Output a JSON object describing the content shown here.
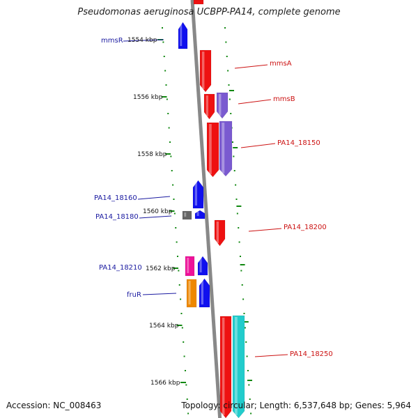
{
  "title": "Pseudomonas aeruginosa UCBPP-PA14, complete genome",
  "accession": "Accession: NC_008463",
  "topology": "Topology: circular; Length: 6,537,648 bp; Genes: 5,964",
  "colors": {
    "backbone": "#888888",
    "ticks": "#118811",
    "left_label": "#1a1aa0",
    "right_label": "#cc1111"
  },
  "kbp_labels": [
    "1554 kbp",
    "1556 kbp",
    "1558 kbp",
    "1560 kbp",
    "1562 kbp",
    "1564 kbp",
    "1566 kbp"
  ],
  "gene_labels": [
    {
      "text": "mmsR",
      "side": "left",
      "gene": "mmsR"
    },
    {
      "text": "mmsA",
      "side": "right",
      "gene": "mmsA"
    },
    {
      "text": "mmsB",
      "side": "right",
      "gene": "mmsB"
    },
    {
      "text": "PA14_18150",
      "side": "right",
      "gene": "PA14_18150"
    },
    {
      "text": "PA14_18160",
      "side": "left",
      "gene": "PA14_18160"
    },
    {
      "text": "PA14_18180",
      "side": "left",
      "gene": "PA14_18180"
    },
    {
      "text": "PA14_18200",
      "side": "right",
      "gene": "PA14_18200"
    },
    {
      "text": "PA14_18210",
      "side": "left",
      "gene": "PA14_18210"
    },
    {
      "text": "fruR",
      "side": "left",
      "gene": "fruR"
    },
    {
      "text": "PA14_18250",
      "side": "right",
      "gene": "PA14_18250"
    }
  ],
  "genes": [
    {
      "id": "mmsR",
      "lane": -1,
      "strand": "+",
      "color": "#1010ee"
    },
    {
      "id": "mmsA",
      "lane": 1,
      "strand": "-",
      "color": "#ee1111"
    },
    {
      "id": "mmsB",
      "lane": 1,
      "strand": "-",
      "color": "#ee1111"
    },
    {
      "id": "mmsB_b",
      "lane": 2,
      "strand": "-",
      "color": "#7a5ad0"
    },
    {
      "id": "PA14_18150",
      "lane": 1,
      "strand": "-",
      "color": "#ee1111"
    },
    {
      "id": "PA14_18150_b",
      "lane": 2,
      "strand": "-",
      "color": "#7a5ad0"
    },
    {
      "id": "PA14_18160",
      "lane": -1,
      "strand": "+",
      "color": "#1010ee"
    },
    {
      "id": "PA14_18180",
      "lane": -1,
      "strand": "+",
      "color": "#1010ee"
    },
    {
      "id": "PA14_18180_b",
      "lane": -2,
      "strand": "none",
      "color": "#666666"
    },
    {
      "id": "PA14_18200",
      "lane": 1,
      "strand": "-",
      "color": "#ee1111"
    },
    {
      "id": "PA14_18210",
      "lane": -2,
      "strand": "none",
      "color": "#ee1199"
    },
    {
      "id": "PA14_18210_b",
      "lane": -1,
      "strand": "+",
      "color": "#1010ee"
    },
    {
      "id": "fruR",
      "lane": -2,
      "strand": "none",
      "color": "#ee8800"
    },
    {
      "id": "fruR_b",
      "lane": -1,
      "strand": "+",
      "color": "#1010ee"
    },
    {
      "id": "PA14_18250",
      "lane": 1,
      "strand": "-",
      "color": "#ee1111"
    },
    {
      "id": "PA14_18250_b",
      "lane": 2,
      "strand": "-",
      "color": "#22cccc"
    },
    {
      "id": "top_partial",
      "lane": 0,
      "strand": "none",
      "color": "#ee1111"
    }
  ]
}
